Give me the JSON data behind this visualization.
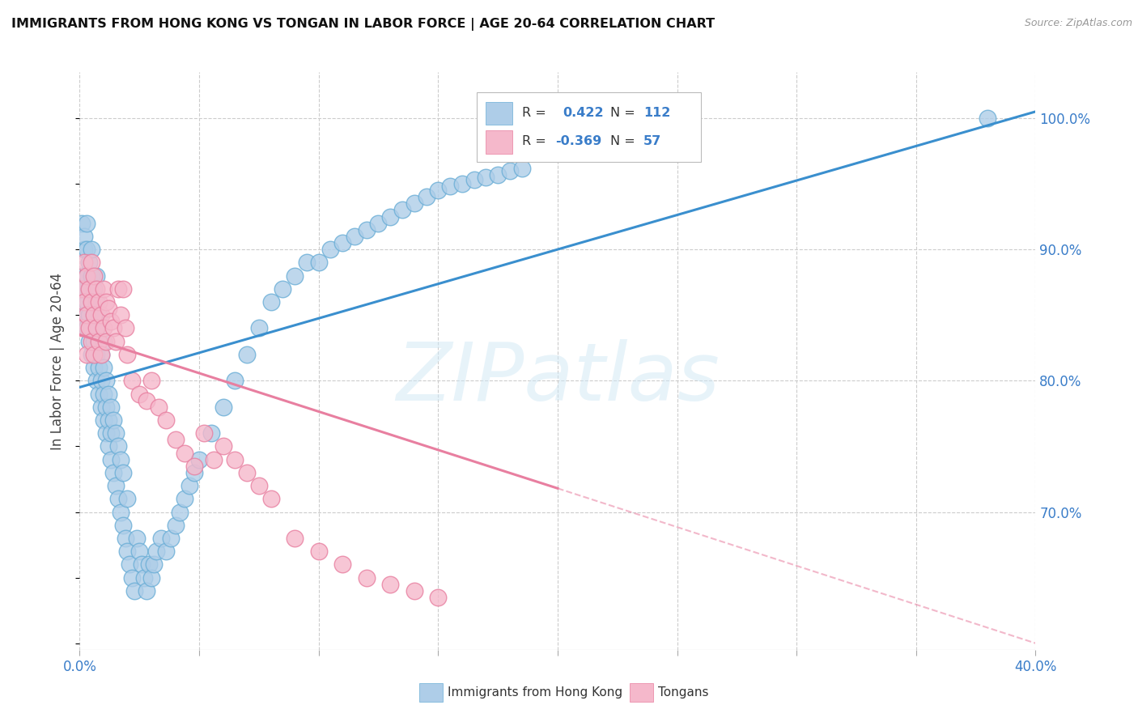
{
  "title": "IMMIGRANTS FROM HONG KONG VS TONGAN IN LABOR FORCE | AGE 20-64 CORRELATION CHART",
  "source": "Source: ZipAtlas.com",
  "ylabel": "In Labor Force | Age 20-64",
  "xlim": [
    0.0,
    0.4
  ],
  "ylim": [
    0.595,
    1.035
  ],
  "xticks": [
    0.0,
    0.05,
    0.1,
    0.15,
    0.2,
    0.25,
    0.3,
    0.35,
    0.4
  ],
  "yticks_right": [
    1.0,
    0.9,
    0.8,
    0.7
  ],
  "ytick_right_labels": [
    "100.0%",
    "90.0%",
    "80.0%",
    "70.0%"
  ],
  "blue_line_color": "#3a8fce",
  "blue_dot_fill": "#aecde8",
  "blue_dot_edge": "#6aaed6",
  "pink_line_color": "#e87fa0",
  "pink_dot_fill": "#f5b8cb",
  "pink_dot_edge": "#e87fa0",
  "hk_trendline": [
    [
      0.0,
      0.795
    ],
    [
      0.4,
      1.005
    ]
  ],
  "tongan_trendline_solid": [
    [
      0.0,
      0.835
    ],
    [
      0.2,
      0.718
    ]
  ],
  "tongan_trendline_dashed": [
    [
      0.2,
      0.718
    ],
    [
      0.4,
      0.6
    ]
  ],
  "hk_x": [
    0.001,
    0.001,
    0.001,
    0.002,
    0.002,
    0.002,
    0.002,
    0.003,
    0.003,
    0.003,
    0.003,
    0.003,
    0.004,
    0.004,
    0.004,
    0.004,
    0.005,
    0.005,
    0.005,
    0.005,
    0.005,
    0.006,
    0.006,
    0.006,
    0.006,
    0.007,
    0.007,
    0.007,
    0.007,
    0.007,
    0.008,
    0.008,
    0.008,
    0.008,
    0.009,
    0.009,
    0.009,
    0.01,
    0.01,
    0.01,
    0.01,
    0.011,
    0.011,
    0.011,
    0.012,
    0.012,
    0.012,
    0.013,
    0.013,
    0.013,
    0.014,
    0.014,
    0.015,
    0.015,
    0.016,
    0.016,
    0.017,
    0.017,
    0.018,
    0.018,
    0.019,
    0.02,
    0.02,
    0.021,
    0.022,
    0.023,
    0.024,
    0.025,
    0.026,
    0.027,
    0.028,
    0.029,
    0.03,
    0.031,
    0.032,
    0.034,
    0.036,
    0.038,
    0.04,
    0.042,
    0.044,
    0.046,
    0.048,
    0.05,
    0.055,
    0.06,
    0.065,
    0.07,
    0.075,
    0.08,
    0.085,
    0.09,
    0.095,
    0.1,
    0.105,
    0.11,
    0.115,
    0.12,
    0.125,
    0.13,
    0.135,
    0.14,
    0.145,
    0.15,
    0.155,
    0.16,
    0.165,
    0.17,
    0.175,
    0.18,
    0.185,
    0.38
  ],
  "hk_y": [
    0.87,
    0.92,
    0.88,
    0.85,
    0.9,
    0.87,
    0.91,
    0.84,
    0.88,
    0.86,
    0.9,
    0.92,
    0.83,
    0.87,
    0.85,
    0.89,
    0.82,
    0.86,
    0.84,
    0.88,
    0.9,
    0.81,
    0.85,
    0.83,
    0.87,
    0.8,
    0.84,
    0.82,
    0.86,
    0.88,
    0.79,
    0.83,
    0.81,
    0.85,
    0.78,
    0.82,
    0.8,
    0.77,
    0.81,
    0.79,
    0.83,
    0.76,
    0.8,
    0.78,
    0.75,
    0.79,
    0.77,
    0.74,
    0.78,
    0.76,
    0.73,
    0.77,
    0.72,
    0.76,
    0.71,
    0.75,
    0.7,
    0.74,
    0.69,
    0.73,
    0.68,
    0.67,
    0.71,
    0.66,
    0.65,
    0.64,
    0.68,
    0.67,
    0.66,
    0.65,
    0.64,
    0.66,
    0.65,
    0.66,
    0.67,
    0.68,
    0.67,
    0.68,
    0.69,
    0.7,
    0.71,
    0.72,
    0.73,
    0.74,
    0.76,
    0.78,
    0.8,
    0.82,
    0.84,
    0.86,
    0.87,
    0.88,
    0.89,
    0.89,
    0.9,
    0.905,
    0.91,
    0.915,
    0.92,
    0.925,
    0.93,
    0.935,
    0.94,
    0.945,
    0.948,
    0.95,
    0.953,
    0.955,
    0.957,
    0.96,
    0.962,
    1.0
  ],
  "tongan_x": [
    0.001,
    0.001,
    0.002,
    0.002,
    0.003,
    0.003,
    0.003,
    0.004,
    0.004,
    0.005,
    0.005,
    0.005,
    0.006,
    0.006,
    0.006,
    0.007,
    0.007,
    0.008,
    0.008,
    0.009,
    0.009,
    0.01,
    0.01,
    0.011,
    0.011,
    0.012,
    0.013,
    0.014,
    0.015,
    0.016,
    0.017,
    0.018,
    0.019,
    0.02,
    0.022,
    0.025,
    0.028,
    0.03,
    0.033,
    0.036,
    0.04,
    0.044,
    0.048,
    0.052,
    0.056,
    0.06,
    0.065,
    0.07,
    0.075,
    0.08,
    0.09,
    0.1,
    0.11,
    0.12,
    0.13,
    0.14,
    0.15
  ],
  "tongan_y": [
    0.87,
    0.84,
    0.89,
    0.86,
    0.88,
    0.85,
    0.82,
    0.87,
    0.84,
    0.89,
    0.86,
    0.83,
    0.88,
    0.85,
    0.82,
    0.87,
    0.84,
    0.86,
    0.83,
    0.85,
    0.82,
    0.87,
    0.84,
    0.86,
    0.83,
    0.855,
    0.845,
    0.84,
    0.83,
    0.87,
    0.85,
    0.87,
    0.84,
    0.82,
    0.8,
    0.79,
    0.785,
    0.8,
    0.78,
    0.77,
    0.755,
    0.745,
    0.735,
    0.76,
    0.74,
    0.75,
    0.74,
    0.73,
    0.72,
    0.71,
    0.68,
    0.67,
    0.66,
    0.65,
    0.645,
    0.64,
    0.635
  ],
  "watermark_text": "ZIPatlas",
  "legend_R1": "R =  0.422",
  "legend_N1": "N = 112",
  "legend_R2": "R = -0.369",
  "legend_N2": "N = 57"
}
